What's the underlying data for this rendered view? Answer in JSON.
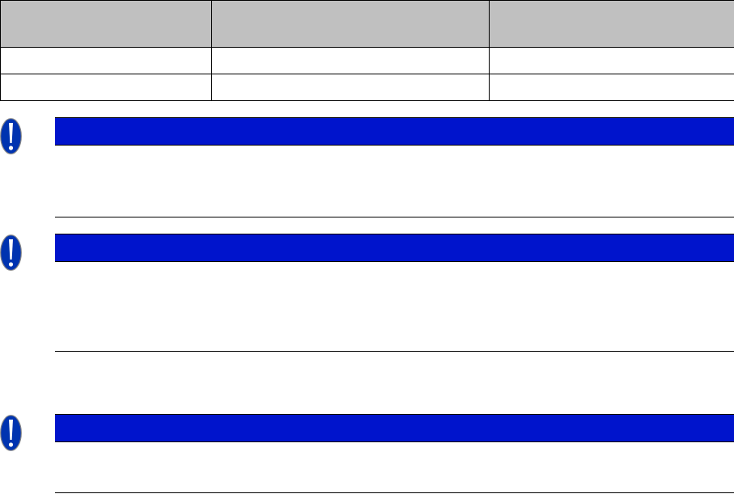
{
  "colors": {
    "table_header_bg": "#c0c0c0",
    "notice_bar": "#0014cc",
    "icon_fill": "#0033b0"
  },
  "table": {
    "headers": [
      "",
      "",
      ""
    ],
    "rows": [
      [
        "",
        "",
        ""
      ],
      [
        "",
        "",
        ""
      ]
    ]
  },
  "notices": [
    {
      "icon": "exclamation-icon",
      "title": "",
      "body": ""
    },
    {
      "icon": "exclamation-icon",
      "title": "",
      "body": ""
    },
    {
      "icon": "exclamation-icon",
      "title": "",
      "body": ""
    }
  ]
}
